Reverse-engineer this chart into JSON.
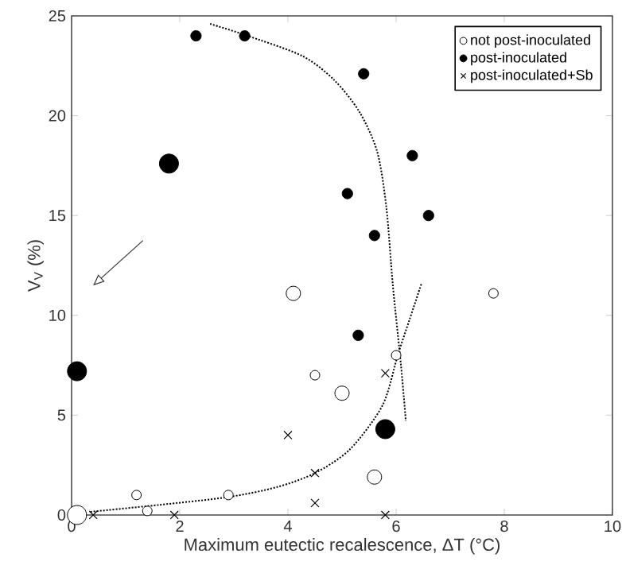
{
  "chart_data": {
    "type": "bubble",
    "xlabel": "Maximum eutectic recalescence, ΔT (°C)",
    "ylabel": "V$_{V}$ (%)",
    "xlim": [
      0,
      10
    ],
    "xticks": [
      0,
      2,
      4,
      6,
      8,
      10
    ],
    "ylim": [
      0,
      25
    ],
    "yticks": [
      0,
      5,
      10,
      15,
      20,
      25
    ],
    "legend": "top right",
    "series": [
      {
        "name": "not post-inoculated",
        "color": "#ffffff",
        "marker": "circle",
        "x": [
          0.1,
          1.2,
          1.4,
          2.9,
          4.1,
          4.5,
          5.0,
          5.6,
          6.0,
          7.8
        ],
        "values": [
          0,
          1.0,
          0.2,
          1.0,
          11.1,
          7.0,
          6.1,
          1.9,
          8.0,
          11.1
        ],
        "sizes": [
          1,
          0.25,
          0.25,
          0.25,
          0.56,
          0.25,
          0.56,
          0.56,
          0.25,
          0.25
        ]
      },
      {
        "name": "post-inoculated",
        "color": "#000000",
        "marker": "circle",
        "x": [
          0.1,
          1.8,
          2.3,
          3.2,
          5.4,
          5.1,
          5.6,
          6.3,
          6.6,
          5.3,
          5.8
        ],
        "values": [
          7.2,
          17.6,
          24.0,
          24.0,
          22.1,
          16.1,
          14.0,
          18.0,
          15.0,
          9.0,
          4.3
        ],
        "sizes": [
          1,
          1,
          0.3,
          0.3,
          0.3,
          0.3,
          0.3,
          0.3,
          0.3,
          0.3,
          1
        ]
      },
      {
        "name": "post-inoculated+Sb",
        "type": "scatter",
        "color": "#000000",
        "marker": "cross",
        "x": [
          0.4,
          1.9,
          4.0,
          4.5,
          4.5,
          5.8,
          5.8
        ],
        "values": [
          0,
          0,
          4.0,
          2.1,
          0.6,
          7.1,
          0
        ]
      },
      {
        "type": "line",
        "color": "#000000",
        "line_style": "dotted",
        "marker": "none",
        "x": [
          0.35,
          1.6,
          2.9,
          3.8,
          4.5,
          5.15,
          5.75,
          6.03,
          6.25,
          6.47
        ],
        "values": [
          0.16,
          0.5,
          0.9,
          1.4,
          2.1,
          3.3,
          5.5,
          8.0,
          9.8,
          11.6
        ]
      },
      {
        "type": "line",
        "color": "#000000",
        "line_style": "dotted",
        "marker": "none",
        "x": [
          2.56,
          3.2,
          4.26,
          4.85,
          5.32,
          5.65,
          5.82,
          5.94,
          6.09,
          6.18
        ],
        "values": [
          24.6,
          24.05,
          23.0,
          21.8,
          20.2,
          18.2,
          15.4,
          11.5,
          7.5,
          4.7
        ]
      }
    ]
  }
}
